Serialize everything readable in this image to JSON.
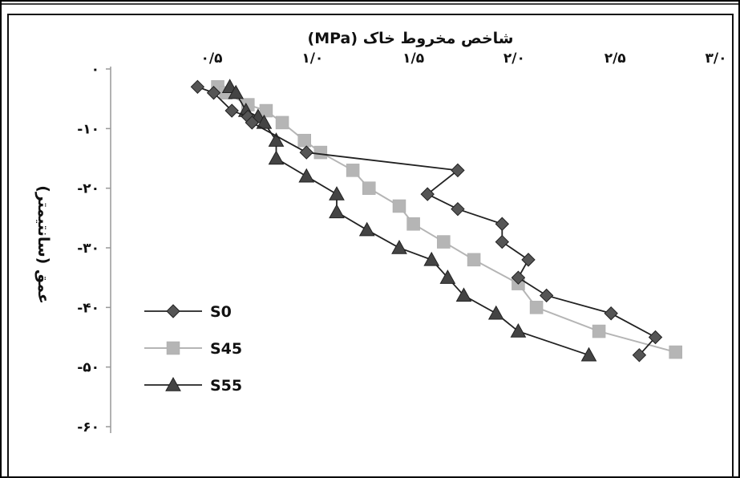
{
  "chart_data": {
    "type": "line",
    "title": "",
    "xlabel": "شاخص مخروط خاک (MPa)",
    "ylabel": "عمق (سانتیمتر)",
    "x_axis_position": "top",
    "xlim": [
      0.3,
      3.0
    ],
    "ylim": [
      -60,
      0
    ],
    "x_ticks": [
      {
        "value": 0.5,
        "label": "۰/۵"
      },
      {
        "value": 1.0,
        "label": "۱/۰"
      },
      {
        "value": 1.5,
        "label": "۱/۵"
      },
      {
        "value": 2.0,
        "label": "۲/۰"
      },
      {
        "value": 2.5,
        "label": "۲/۵"
      },
      {
        "value": 3.0,
        "label": "۳/۰"
      }
    ],
    "y_ticks": [
      {
        "value": 0,
        "label": "۰"
      },
      {
        "value": -10,
        "label": "-۱۰"
      },
      {
        "value": -20,
        "label": "-۲۰"
      },
      {
        "value": -30,
        "label": "-۳۰"
      },
      {
        "value": -40,
        "label": "-۴۰"
      },
      {
        "value": -50,
        "label": "-۵۰"
      },
      {
        "value": -60,
        "label": "-۶۰"
      }
    ],
    "grid": false,
    "legend_position": "bottom-left",
    "series": [
      {
        "name": "S0",
        "marker": "diamond",
        "color": "#555555",
        "line_color": "#222222",
        "x": [
          0.43,
          0.51,
          0.6,
          0.68,
          0.7,
          0.97,
          1.72,
          1.57,
          1.72,
          1.94,
          1.94,
          2.07,
          2.02,
          2.16,
          2.48,
          2.7,
          2.62
        ],
        "y": [
          -3,
          -4,
          -7,
          -8,
          -9,
          -14,
          -17,
          -21,
          -23.5,
          -26,
          -29,
          -32,
          -35,
          -38,
          -41,
          -45,
          -48
        ]
      },
      {
        "name": "S45",
        "color": "#b5b5b5",
        "line_color": "#b5b5b5",
        "marker": "square",
        "x": [
          0.53,
          0.57,
          0.68,
          0.77,
          0.85,
          0.96,
          1.04,
          1.2,
          1.28,
          1.43,
          1.5,
          1.65,
          1.8,
          2.02,
          2.11,
          2.42,
          2.8
        ],
        "y": [
          -3,
          -4,
          -6,
          -7,
          -9,
          -12,
          -14,
          -17,
          -20,
          -23,
          -26,
          -29,
          -32,
          -36,
          -40,
          -44,
          -47.5
        ]
      },
      {
        "name": "S55",
        "color": "#444444",
        "line_color": "#222222",
        "marker": "triangle",
        "x": [
          0.59,
          0.62,
          0.67,
          0.73,
          0.76,
          0.82,
          0.82,
          0.97,
          1.12,
          1.12,
          1.27,
          1.43,
          1.59,
          1.67,
          1.75,
          1.91,
          2.02,
          2.37
        ],
        "y": [
          -3,
          -4,
          -7,
          -8,
          -9,
          -12,
          -15,
          -18,
          -21,
          -24,
          -27,
          -30,
          -32,
          -35,
          -38,
          -41,
          -44,
          -48
        ]
      }
    ]
  }
}
